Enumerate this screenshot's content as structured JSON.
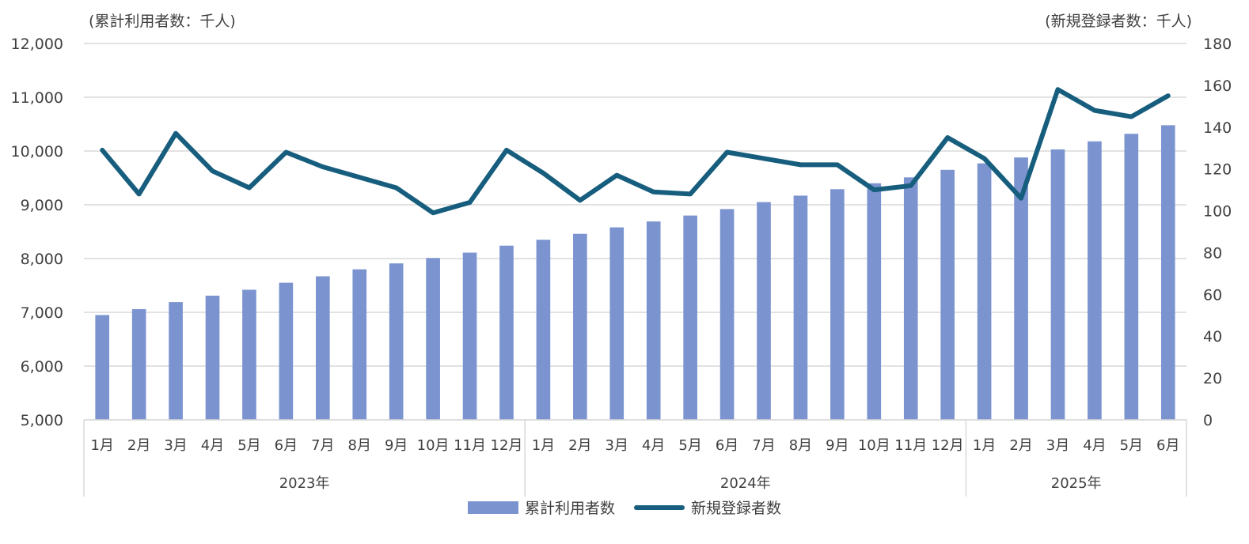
{
  "chart_data": {
    "type": "bar+line",
    "left_axis_unit": "(累計利用者数：千人)",
    "right_axis_unit": "(新規登録者数：千人)",
    "left_axis": {
      "min": 5000,
      "max": 12000,
      "step": 1000,
      "ticks": [
        "5,000",
        "6,000",
        "7,000",
        "8,000",
        "9,000",
        "10,000",
        "11,000",
        "12,000"
      ]
    },
    "right_axis": {
      "min": 0,
      "max": 180,
      "step": 20,
      "ticks": [
        "0",
        "20",
        "40",
        "60",
        "80",
        "100",
        "120",
        "140",
        "160",
        "180"
      ]
    },
    "months": [
      "1月",
      "2月",
      "3月",
      "4月",
      "5月",
      "6月",
      "7月",
      "8月",
      "9月",
      "10月",
      "11月",
      "12月",
      "1月",
      "2月",
      "3月",
      "4月",
      "5月",
      "6月",
      "7月",
      "8月",
      "9月",
      "10月",
      "11月",
      "12月",
      "1月",
      "2月",
      "3月",
      "4月",
      "5月",
      "6月"
    ],
    "years": [
      {
        "label": "2023年",
        "count": 12
      },
      {
        "label": "2024年",
        "count": 12
      },
      {
        "label": "2025年",
        "count": 6
      }
    ],
    "series": [
      {
        "name": "累計利用者数",
        "type": "bar",
        "axis": "left",
        "color": "#7b94d0",
        "values": [
          6950,
          7060,
          7190,
          7310,
          7420,
          7550,
          7670,
          7800,
          7910,
          8010,
          8110,
          8240,
          8350,
          8460,
          8580,
          8690,
          8800,
          8920,
          9050,
          9170,
          9290,
          9400,
          9510,
          9650,
          9770,
          9880,
          10030,
          10180,
          10320,
          10480
        ]
      },
      {
        "name": "新規登録者数",
        "type": "line",
        "axis": "right",
        "color": "#175e7e",
        "values": [
          129,
          108,
          137,
          119,
          111,
          128,
          121,
          116,
          111,
          99,
          104,
          129,
          118,
          105,
          117,
          109,
          108,
          128,
          125,
          122,
          122,
          110,
          112,
          135,
          125,
          106,
          158,
          148,
          145,
          155
        ]
      }
    ],
    "grid": true,
    "legend_position": "bottom-center"
  }
}
